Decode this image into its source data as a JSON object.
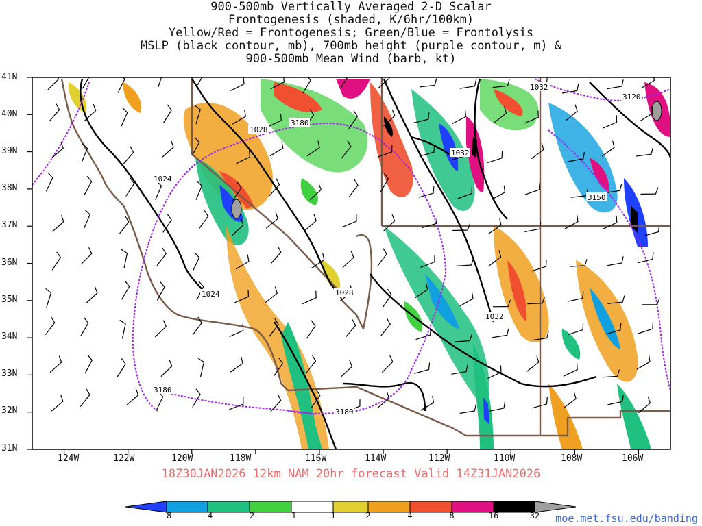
{
  "title_lines": [
    "900-500mb Vertically Averaged 2-D Scalar",
    "Frontogenesis (shaded, K/6hr/100km)",
    "Yellow/Red = Frontogenesis;  Green/Blue = Frontolysis",
    "MSLP (black contour, mb), 700mb height (purple contour, m) &",
    "900-500mb Mean Wind (barb, kt)"
  ],
  "subtitle": "18Z30JAN2026 12km NAM 20hr forecast Valid 14Z31JAN2026",
  "credit": "moe.met.fsu.edu/banding",
  "map": {
    "lon_range": [
      -125,
      -105
    ],
    "lat_range": [
      31,
      41
    ],
    "lat_labels": [
      "41N",
      "40N",
      "39N",
      "38N",
      "37N",
      "36N",
      "35N",
      "34N",
      "33N",
      "32N",
      "31N"
    ],
    "lon_labels": [
      "124W",
      "122W",
      "120W",
      "118W",
      "116W",
      "114W",
      "112W",
      "110W",
      "108W",
      "106W"
    ]
  },
  "contour_labels": {
    "mslp": [
      "1028",
      "1024",
      "1024",
      "1028",
      "1032",
      "1032",
      "1032"
    ],
    "height": [
      "3180",
      "3120",
      "3150",
      "3180",
      "3180"
    ]
  },
  "colorbar": {
    "labels": [
      "-8",
      "-4",
      "-2",
      "-1",
      "1",
      "2",
      "4",
      "8",
      "16",
      "32"
    ],
    "colors": [
      "#2040ff",
      "#10a0e0",
      "#20c080",
      "#40d040",
      "#ffffff",
      "#e0d030",
      "#f0a020",
      "#f05030",
      "#e01080",
      "#000000",
      "#a0a0a0"
    ]
  },
  "colors": {
    "mslp": "#000000",
    "height": "#a020f0",
    "border": "#7a5a48",
    "barb": "#000000"
  }
}
